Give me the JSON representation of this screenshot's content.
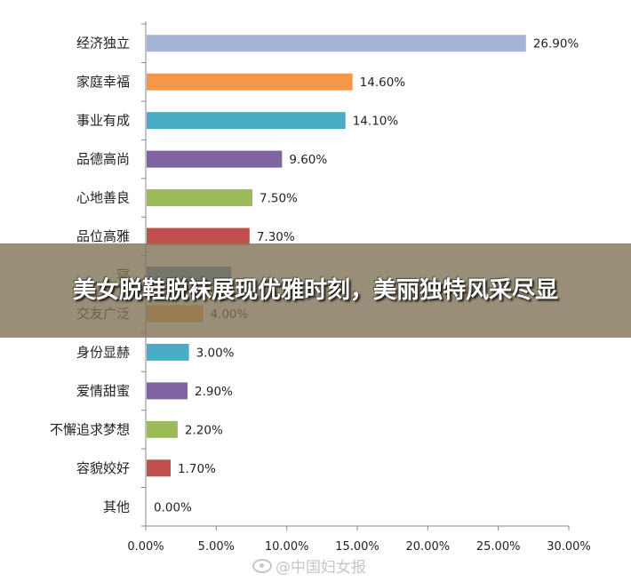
{
  "chart_data": {
    "type": "bar",
    "orientation": "horizontal",
    "categories": [
      "经济独立",
      "家庭幸福",
      "事业有成",
      "品德高尚",
      "心地善良",
      "品位高雅",
      "寝",
      "交友广泛",
      "身份显赫",
      "爱情甜蜜",
      "不懈追求梦想",
      "容貌姣好",
      "其他"
    ],
    "values": [
      26.9,
      14.6,
      14.1,
      9.6,
      7.5,
      7.3,
      6.0,
      4.0,
      3.0,
      2.9,
      2.2,
      1.7,
      0.0
    ],
    "value_labels": [
      "26.90%",
      "14.60%",
      "14.10%",
      "9.60%",
      "7.50%",
      "7.30%",
      "",
      "4.00%",
      "3.00%",
      "2.90%",
      "2.20%",
      "1.70%",
      "0.00%"
    ],
    "colors": [
      "#a5b5d6",
      "#f79646",
      "#4bacc6",
      "#8064a2",
      "#9bbb59",
      "#c0504d",
      "#4f81bd",
      "#f79646",
      "#4bacc6",
      "#8064a2",
      "#9bbb59",
      "#c0504d",
      "#4f81bd"
    ],
    "xlim": [
      0,
      30
    ],
    "xticks": [
      0,
      5,
      10,
      15,
      20,
      25,
      30
    ],
    "xtick_labels": [
      "0.00%",
      "5.00%",
      "10.00%",
      "15.00%",
      "20.00%",
      "25.00%",
      "30.00%"
    ],
    "grid": false,
    "title": "",
    "xlabel": "",
    "ylabel": ""
  },
  "overlay": {
    "title": "美女脱鞋脱袜展现优雅时刻，美丽独特风采尽显",
    "background": "#807356"
  },
  "watermark": {
    "text": "@中国妇女报",
    "icon": "weibo-icon"
  }
}
